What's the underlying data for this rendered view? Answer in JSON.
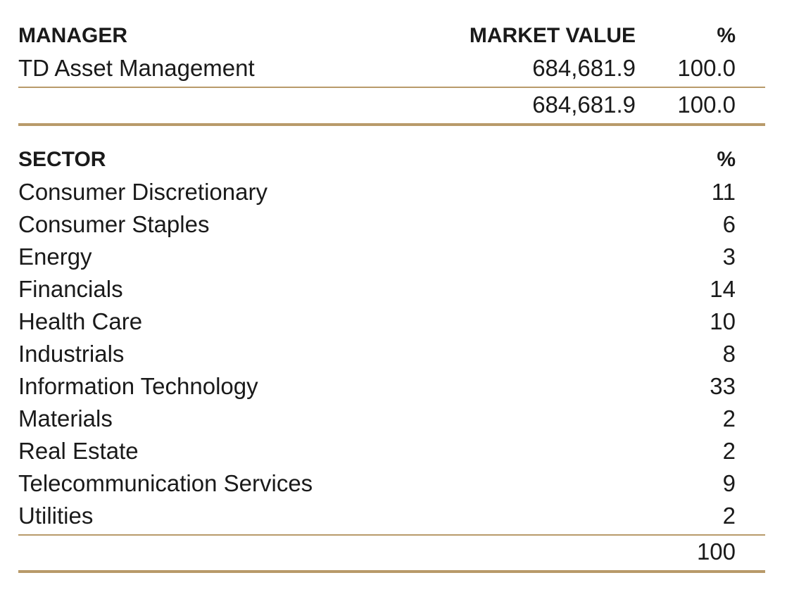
{
  "manager_table": {
    "headers": {
      "manager": "MANAGER",
      "market_value": "MARKET VALUE",
      "percent": "%"
    },
    "rows": [
      {
        "manager": "TD Asset Management",
        "market_value": "684,681.9",
        "percent": "100.0"
      }
    ],
    "total": {
      "market_value": "684,681.9",
      "percent": "100.0"
    }
  },
  "sector_table": {
    "headers": {
      "sector": "SECTOR",
      "percent": "%"
    },
    "rows": [
      {
        "sector": "Consumer Discretionary",
        "percent": "11"
      },
      {
        "sector": "Consumer Staples",
        "percent": "6"
      },
      {
        "sector": "Energy",
        "percent": "3"
      },
      {
        "sector": "Financials",
        "percent": "14"
      },
      {
        "sector": "Health Care",
        "percent": "10"
      },
      {
        "sector": "Industrials",
        "percent": "8"
      },
      {
        "sector": "Information Technology",
        "percent": "33"
      },
      {
        "sector": "Materials",
        "percent": "2"
      },
      {
        "sector": "Real Estate",
        "percent": "2"
      },
      {
        "sector": "Telecommunication Services",
        "percent": "9"
      },
      {
        "sector": "Utilities",
        "percent": "2"
      }
    ],
    "total": {
      "percent": "100"
    }
  },
  "colors": {
    "rule": "#b89a6a",
    "text": "#1a1a1a"
  }
}
